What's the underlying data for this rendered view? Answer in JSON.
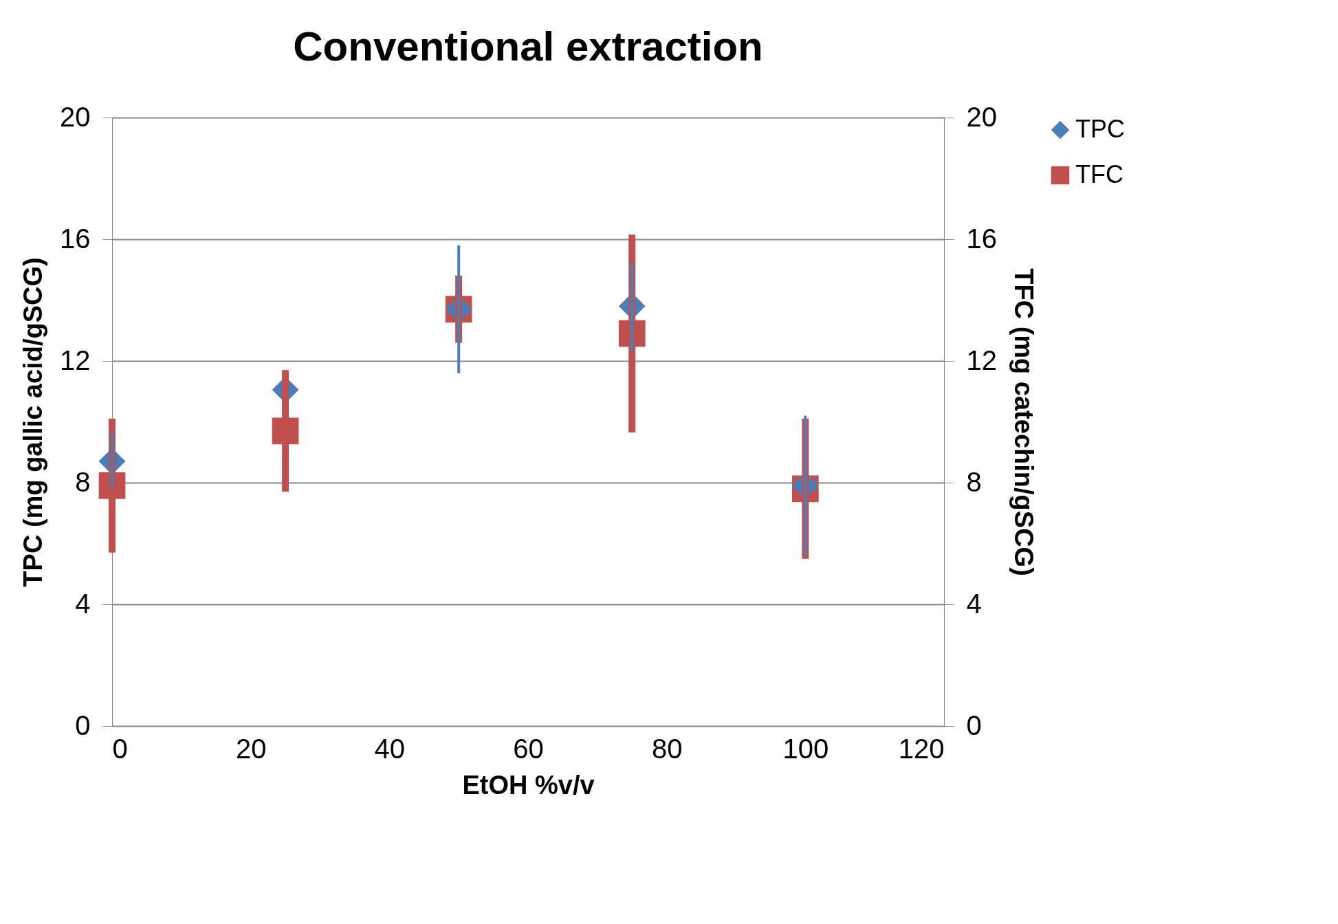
{
  "chart_data": {
    "type": "scatter",
    "title": "Conventional extraction",
    "xlabel": "EtOH %v/v",
    "ylabel": "TPC (mg gallic acid/gSCG)",
    "y2label": "TFC (mg catechin/gSCG)",
    "xlim": [
      0,
      120
    ],
    "xticks": [
      0,
      20,
      40,
      60,
      80,
      100,
      120
    ],
    "ylim": [
      0,
      20
    ],
    "yticks": [
      0,
      4,
      8,
      12,
      16,
      20
    ],
    "y2lim": [
      0,
      20
    ],
    "y2ticks": [
      0,
      4,
      8,
      12,
      16,
      20
    ],
    "grid": "y",
    "legend": "right",
    "series": [
      {
        "name": "TPC",
        "color": "#4a7ebb",
        "marker": "diamond",
        "x": [
          0,
          25,
          50,
          75,
          100
        ],
        "values": [
          8.7,
          11.05,
          13.7,
          13.8,
          7.9
        ],
        "errors": [
          0.9,
          null,
          2.1,
          1.45,
          2.3
        ]
      },
      {
        "name": "TFC",
        "color": "#c0504d",
        "marker": "square",
        "axis": "y2",
        "x": [
          0,
          25,
          50,
          75,
          100
        ],
        "values": [
          7.9,
          9.7,
          13.7,
          12.9,
          7.8
        ],
        "errors": [
          2.2,
          2.0,
          1.1,
          3.25,
          2.3
        ]
      }
    ]
  }
}
